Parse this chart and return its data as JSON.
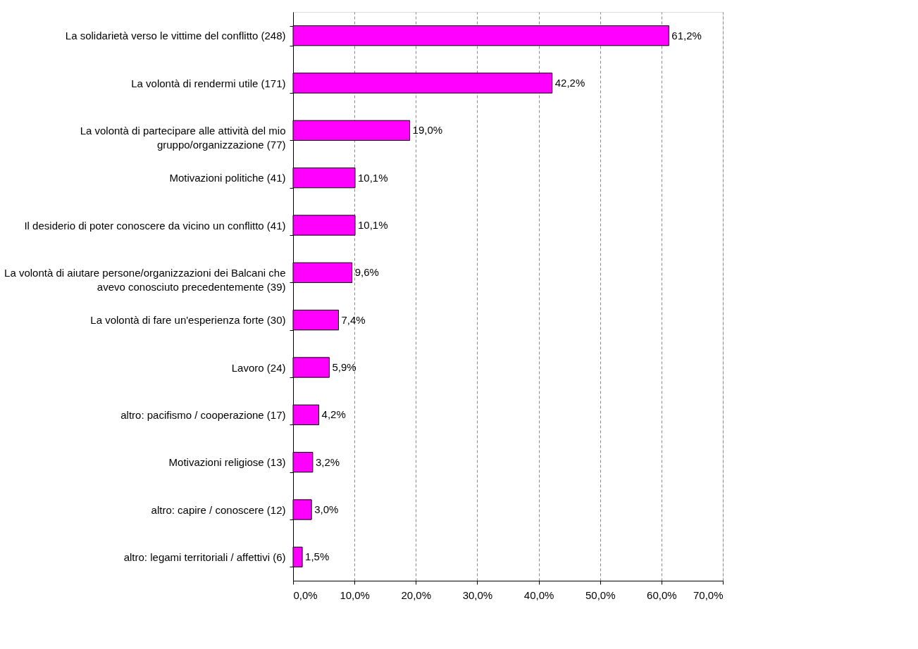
{
  "chart_data": {
    "type": "bar",
    "orientation": "horizontal",
    "categories": [
      "La solidarietà verso le vittime del conflitto  (248)",
      "La volontà di rendermi utile  (171)",
      "La volontà di partecipare alle attività del mio\ngruppo/organizzazione  (77)",
      "Motivazioni politiche  (41)",
      "Il desiderio di poter conoscere da vicino un conflitto  (41)",
      "La volontà di aiutare persone/organizzazioni dei Balcani che\navevo conosciuto precedentemente  (39)",
      "La volontà di fare un'esperienza forte  (30)",
      "Lavoro  (24)",
      "altro: pacifismo / cooperazione  (17)",
      "Motivazioni religiose  (13)",
      "altro: capire / conoscere  (12)",
      "altro: legami territoriali / affettivi  (6)"
    ],
    "values": [
      61.2,
      42.2,
      19.0,
      10.1,
      10.1,
      9.6,
      7.4,
      5.9,
      4.2,
      3.2,
      3.0,
      1.5
    ],
    "value_labels": [
      "61,2%",
      "42,2%",
      "19,0%",
      "10,1%",
      "10,1%",
      "9,6%",
      "7,4%",
      "5,9%",
      "4,2%",
      "3,2%",
      "3,0%",
      "1,5%"
    ],
    "color": "#ff00ff",
    "xlim": [
      0,
      70
    ],
    "xticks": [
      {
        "value": 0,
        "label": "0,0%"
      },
      {
        "value": 10,
        "label": "10,0%"
      },
      {
        "value": 20,
        "label": "20,0%"
      },
      {
        "value": 30,
        "label": "30,0%"
      },
      {
        "value": 40,
        "label": "40,0%"
      },
      {
        "value": 50,
        "label": "50,0%"
      },
      {
        "value": 60,
        "label": "60,0%"
      },
      {
        "value": 70,
        "label": "70,0%"
      }
    ],
    "grid": "x"
  }
}
